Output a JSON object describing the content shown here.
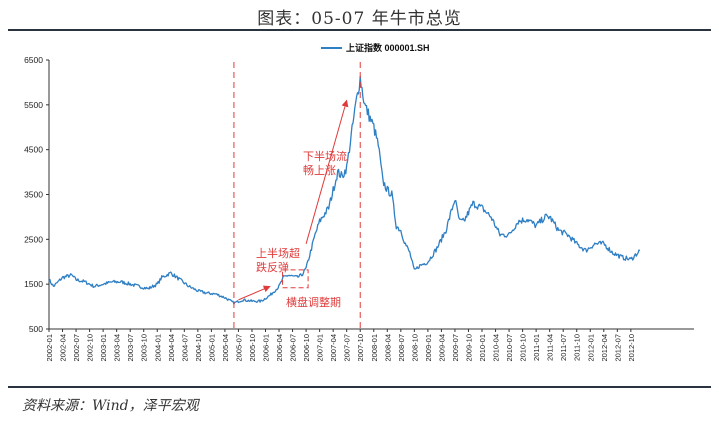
{
  "header": {
    "title": "图表：05-07 年牛市总览"
  },
  "footer": {
    "source": "资料来源：Wind，泽平宏观"
  },
  "chart_data": {
    "type": "line",
    "title": "",
    "xlabel": "",
    "ylabel": "",
    "legend": {
      "position": "top-center",
      "entries": [
        "上证指数 000001.SH"
      ]
    },
    "ylim": [
      500,
      6500
    ],
    "yticks": [
      500,
      1500,
      2500,
      3500,
      4500,
      5500,
      6500
    ],
    "grid": false,
    "colors": {
      "series": "#2e7fc4",
      "annotation": "#e03b3b"
    },
    "xtick_labels": [
      "2002-01",
      "2002-04",
      "2002-07",
      "2002-10",
      "2003-01",
      "2003-04",
      "2003-07",
      "2003-10",
      "2004-01",
      "2004-04",
      "2004-07",
      "2004-10",
      "2005-01",
      "2005-04",
      "2005-07",
      "2005-10",
      "2006-01",
      "2006-04",
      "2006-07",
      "2006-10",
      "2007-01",
      "2007-04",
      "2007-07",
      "2007-10",
      "2008-01",
      "2008-04",
      "2008-07",
      "2008-10",
      "2009-01",
      "2009-04",
      "2009-07",
      "2009-10",
      "2010-01",
      "2010-04",
      "2010-07",
      "2010-10",
      "2011-01",
      "2011-04",
      "2011-07",
      "2011-10",
      "2012-01",
      "2012-04",
      "2012-07",
      "2012-10"
    ],
    "series": [
      {
        "name": "上证指数 000001.SH",
        "x": [
          "2002-01",
          "2002-02",
          "2002-04",
          "2002-06",
          "2002-07",
          "2002-09",
          "2002-11",
          "2003-01",
          "2003-03",
          "2003-05",
          "2003-07",
          "2003-09",
          "2003-11",
          "2004-01",
          "2004-02",
          "2004-04",
          "2004-06",
          "2004-08",
          "2004-10",
          "2004-12",
          "2005-02",
          "2005-04",
          "2005-06",
          "2005-08",
          "2005-10",
          "2005-12",
          "2006-02",
          "2006-04",
          "2006-05",
          "2006-06",
          "2006-08",
          "2006-09",
          "2006-10",
          "2006-12",
          "2007-01",
          "2007-03",
          "2007-05",
          "2007-06",
          "2007-07",
          "2007-08",
          "2007-09",
          "2007-10",
          "2007-11",
          "2008-01",
          "2008-02",
          "2008-03",
          "2008-04",
          "2008-05",
          "2008-06",
          "2008-07",
          "2008-08",
          "2008-09",
          "2008-10",
          "2008-11",
          "2009-01",
          "2009-03",
          "2009-05",
          "2009-07",
          "2009-08",
          "2009-09",
          "2009-11",
          "2010-01",
          "2010-03",
          "2010-05",
          "2010-07",
          "2010-09",
          "2010-11",
          "2011-01",
          "2011-03",
          "2011-04",
          "2011-06",
          "2011-08",
          "2011-10",
          "2011-12",
          "2012-02",
          "2012-04",
          "2012-06",
          "2012-08",
          "2012-10",
          "2012-12"
        ],
        "values": [
          1600,
          1450,
          1650,
          1700,
          1600,
          1550,
          1450,
          1500,
          1550,
          1550,
          1500,
          1450,
          1400,
          1500,
          1650,
          1750,
          1600,
          1450,
          1350,
          1300,
          1280,
          1200,
          1080,
          1150,
          1120,
          1120,
          1250,
          1450,
          1650,
          1700,
          1650,
          1700,
          1850,
          2600,
          2900,
          3200,
          4000,
          3900,
          4100,
          4800,
          5500,
          6100,
          5500,
          5000,
          4600,
          3800,
          3600,
          3500,
          2800,
          2700,
          2400,
          2200,
          1800,
          1900,
          2000,
          2300,
          2700,
          3400,
          2900,
          2900,
          3300,
          3200,
          3000,
          2600,
          2600,
          2900,
          2950,
          2800,
          3000,
          3000,
          2700,
          2600,
          2400,
          2250,
          2400,
          2400,
          2200,
          2100,
          2050,
          2250
        ]
      }
    ],
    "annotations": [
      {
        "text_lines": [
          "上半场超",
          "跌反弹"
        ]
      },
      {
        "text_lines": [
          "下半场流",
          "畅上涨"
        ]
      },
      {
        "text_lines": [
          "横盘调整期"
        ]
      }
    ]
  }
}
